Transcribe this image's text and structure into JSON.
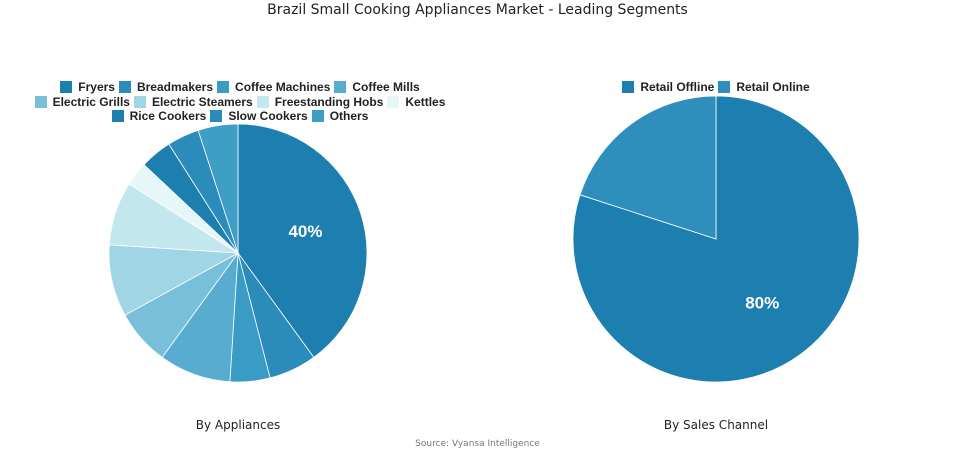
{
  "title": "Brazil Small Cooking Appliances Market - Leading Segments",
  "source": "Source: Vyansa Intelligence",
  "chart_data": [
    {
      "type": "pie",
      "subtitle": "By Appliances",
      "legend": "top",
      "categories": [
        "Fryers",
        "Breadmakers",
        "Coffee Machines",
        "Coffee Mills",
        "Electric Grills",
        "Electric Steamers",
        "Freestanding Hobs",
        "Kettles",
        "Rice Cookers",
        "Slow Cookers",
        "Others"
      ],
      "values": [
        40,
        6,
        5,
        9,
        7,
        9,
        8,
        3,
        4,
        4,
        5
      ],
      "data_labels": [
        "40%",
        "",
        "",
        "",
        "",
        "",
        "",
        "",
        "",
        "",
        ""
      ],
      "colors": [
        "#1c7fb0",
        "#2b8bba",
        "#3a9bc4",
        "#58acd0",
        "#78c0da",
        "#9fd5e5",
        "#c3e7ef",
        "#e6f6f9",
        "#1c7fb0",
        "#2b8bba",
        "#3f9ec6"
      ]
    },
    {
      "type": "pie",
      "subtitle": "By Sales Channel",
      "legend": "top",
      "categories": [
        "Retail Offline",
        "Retail Online"
      ],
      "values": [
        80,
        20
      ],
      "data_labels": [
        "80%",
        ""
      ],
      "colors": [
        "#1c7fb0",
        "#2f8fbc"
      ]
    }
  ]
}
